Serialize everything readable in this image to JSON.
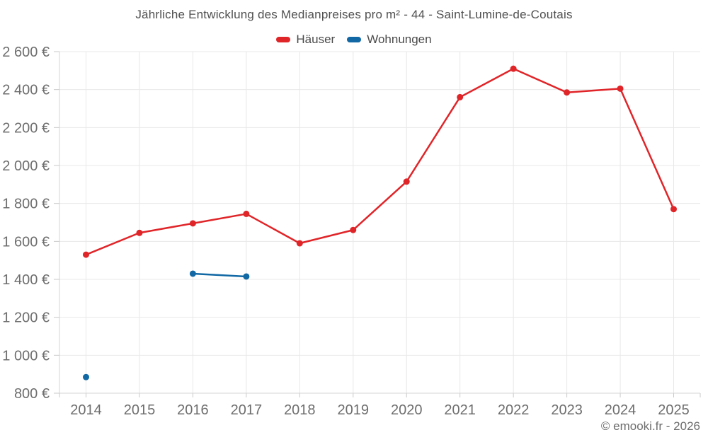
{
  "page": {
    "title": "Jährliche Entwicklung des Medianpreises pro m² - 44 - Saint-Lumine-de-Coutais",
    "footer_credit": "© emooki.fr - 2026"
  },
  "legend": {
    "items": [
      {
        "label": "Häuser",
        "color": "#e02529"
      },
      {
        "label": "Wohnungen",
        "color": "#1168a4"
      }
    ]
  },
  "chart_data": {
    "type": "line",
    "title": "Jährliche Entwicklung des Medianpreises pro m² - 44 - Saint-Lumine-de-Coutais",
    "x": [
      2014,
      2015,
      2016,
      2017,
      2018,
      2019,
      2020,
      2021,
      2022,
      2023,
      2024,
      2025
    ],
    "series": [
      {
        "name": "Häuser",
        "color": "#e02529",
        "values": [
          1530,
          1645,
          1695,
          1745,
          1590,
          1660,
          1915,
          2360,
          2510,
          2385,
          2405,
          1770
        ]
      },
      {
        "name": "Wohnungen",
        "color": "#1168a4",
        "values": [
          885,
          null,
          1430,
          1415,
          null,
          null,
          null,
          null,
          null,
          null,
          null,
          null
        ]
      }
    ],
    "xlabel": "",
    "ylabel": "",
    "y_unit": "€",
    "ylim": [
      800,
      2600
    ],
    "ytick_step": 200,
    "grid": true,
    "legend_position": "top"
  },
  "colors": {
    "background": "#ffffff",
    "grid": "#e8e8e8",
    "axis": "#d4d4d4",
    "tick": "#c9c9c9",
    "tick_label": "#6e6e6e",
    "title": "#4f4f4f",
    "legend_text": "#4a4a4a",
    "footer": "#6e6e6e"
  }
}
